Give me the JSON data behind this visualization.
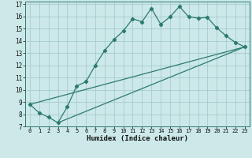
{
  "xlabel": "Humidex (Indice chaleur)",
  "ylabel": "",
  "bg_color": "#cce8e8",
  "line_color": "#2d7b6e",
  "xlim": [
    -0.5,
    23.5
  ],
  "ylim": [
    7,
    17.2
  ],
  "xticks": [
    0,
    1,
    2,
    3,
    4,
    5,
    6,
    7,
    8,
    9,
    10,
    11,
    12,
    13,
    14,
    15,
    16,
    17,
    18,
    19,
    20,
    21,
    22,
    23
  ],
  "yticks": [
    7,
    8,
    9,
    10,
    11,
    12,
    13,
    14,
    15,
    16,
    17
  ],
  "curve1_x": [
    0,
    1,
    2,
    3,
    4,
    5,
    6,
    7,
    8,
    9,
    10,
    11,
    12,
    13,
    14,
    15,
    16,
    17,
    18,
    19,
    20,
    21,
    22,
    23
  ],
  "curve1_y": [
    8.8,
    8.1,
    7.75,
    7.3,
    8.6,
    10.3,
    10.65,
    12.0,
    13.2,
    14.1,
    14.8,
    15.8,
    15.55,
    16.65,
    15.35,
    15.95,
    16.8,
    15.95,
    15.85,
    15.9,
    15.05,
    14.4,
    13.85,
    13.5
  ],
  "line2_x": [
    0,
    23
  ],
  "line2_y": [
    8.8,
    13.5
  ],
  "line3_x": [
    3,
    23
  ],
  "line3_y": [
    7.3,
    13.5
  ],
  "xlabel_fontsize": 6.5,
  "tick_fontsize": 5.0,
  "ytick_fontsize": 5.5
}
